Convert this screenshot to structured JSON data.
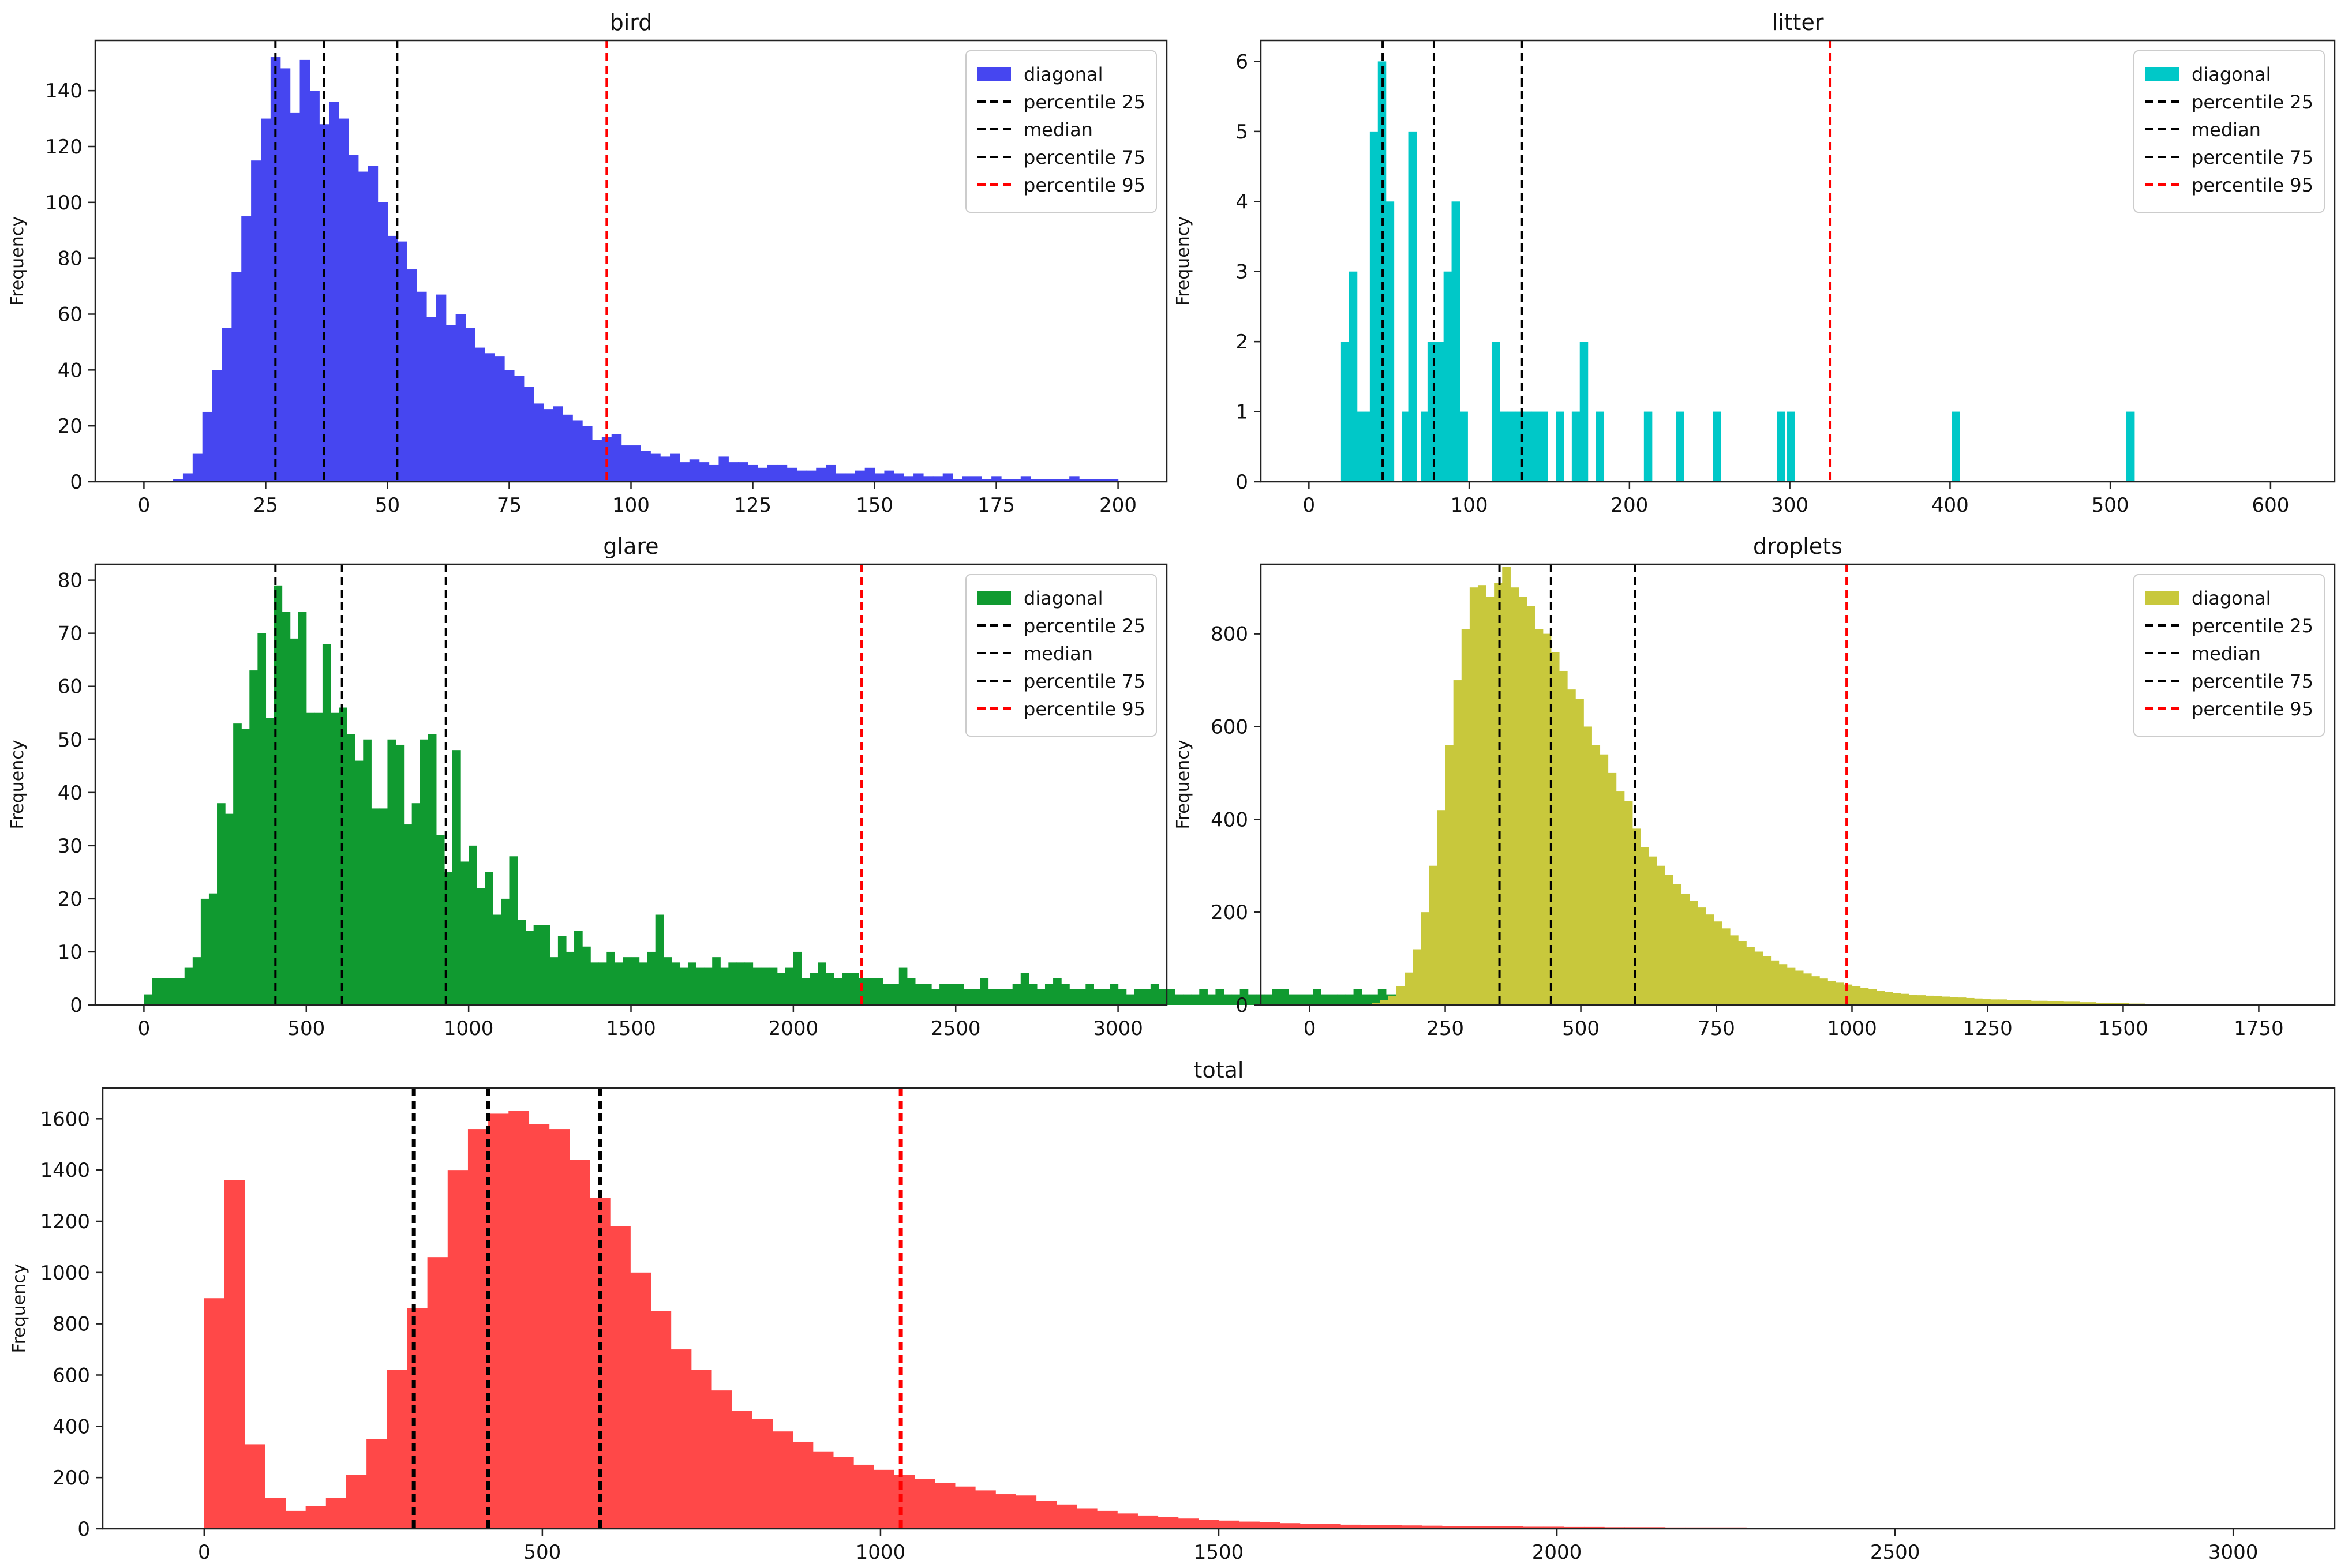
{
  "chart_data": [
    {
      "type": "bar",
      "id": "bird",
      "title": "bird",
      "xlabel": "",
      "ylabel": "Frequency",
      "color": "#4646f0",
      "xlim": [
        -10,
        210
      ],
      "ylim": [
        0,
        158
      ],
      "xticks": [
        0,
        25,
        50,
        75,
        100,
        125,
        150,
        175,
        200
      ],
      "yticks": [
        0,
        20,
        40,
        60,
        80,
        100,
        120,
        140
      ],
      "bin_start": 6,
      "bin_width": 2,
      "values": [
        1,
        3,
        10,
        25,
        40,
        55,
        75,
        95,
        115,
        130,
        152,
        148,
        132,
        151,
        140,
        128,
        136,
        130,
        117,
        111,
        113,
        100,
        88,
        86,
        76,
        68,
        59,
        67,
        56,
        60,
        55,
        48,
        46,
        45,
        40,
        38,
        34,
        28,
        26,
        27,
        24,
        22,
        20,
        15,
        16,
        17,
        13,
        13,
        11,
        10,
        9,
        10,
        7,
        8,
        7,
        6,
        9,
        7,
        7,
        6,
        5,
        6,
        6,
        5,
        4,
        4,
        5,
        6,
        3,
        3,
        4,
        5,
        3,
        4,
        3,
        2,
        3,
        2,
        2,
        3,
        1,
        2,
        2,
        1,
        2,
        1,
        1,
        2,
        1,
        1,
        1,
        1,
        2,
        1,
        1,
        1,
        1
      ],
      "legend": [
        {
          "label": "diagonal",
          "kind": "patch",
          "color": "#4646f0"
        },
        {
          "label": "percentile 25",
          "kind": "line",
          "color": "#000000"
        },
        {
          "label": "median",
          "kind": "line",
          "color": "#000000"
        },
        {
          "label": "percentile 75",
          "kind": "line",
          "color": "#000000"
        },
        {
          "label": "percentile 95",
          "kind": "line",
          "color": "#ff0000"
        }
      ],
      "vlines": [
        {
          "name": "percentile 25",
          "x": 27,
          "color": "#000000"
        },
        {
          "name": "median",
          "x": 37,
          "color": "#000000"
        },
        {
          "name": "percentile 75",
          "x": 52,
          "color": "#000000"
        },
        {
          "name": "percentile 95",
          "x": 95,
          "color": "#ff0000"
        }
      ],
      "legend_position": "top-right"
    },
    {
      "type": "bar",
      "id": "litter",
      "title": "litter",
      "xlabel": "",
      "ylabel": "Frequency",
      "color": "#00c8c8",
      "xlim": [
        -30,
        640
      ],
      "ylim": [
        0,
        6.3
      ],
      "xticks": [
        0,
        100,
        200,
        300,
        400,
        500,
        600
      ],
      "yticks": [
        0,
        1,
        2,
        3,
        4,
        5,
        6
      ],
      "bars": [
        {
          "x": 20,
          "w": 5,
          "h": 2
        },
        {
          "x": 25,
          "w": 5,
          "h": 3
        },
        {
          "x": 30,
          "w": 5,
          "h": 1
        },
        {
          "x": 35,
          "w": 5,
          "h": 1
        },
        {
          "x": 38,
          "w": 5,
          "h": 5
        },
        {
          "x": 43,
          "w": 5,
          "h": 6
        },
        {
          "x": 48,
          "w": 5,
          "h": 4
        },
        {
          "x": 58,
          "w": 5,
          "h": 1
        },
        {
          "x": 62,
          "w": 5,
          "h": 5
        },
        {
          "x": 70,
          "w": 5,
          "h": 1
        },
        {
          "x": 74,
          "w": 5,
          "h": 2
        },
        {
          "x": 79,
          "w": 5,
          "h": 2
        },
        {
          "x": 84,
          "w": 5,
          "h": 3
        },
        {
          "x": 89,
          "w": 5,
          "h": 4
        },
        {
          "x": 94,
          "w": 5,
          "h": 1
        },
        {
          "x": 114,
          "w": 5,
          "h": 2
        },
        {
          "x": 119,
          "w": 5,
          "h": 1
        },
        {
          "x": 124,
          "w": 5,
          "h": 1
        },
        {
          "x": 129,
          "w": 5,
          "h": 1
        },
        {
          "x": 134,
          "w": 5,
          "h": 1
        },
        {
          "x": 139,
          "w": 5,
          "h": 1
        },
        {
          "x": 144,
          "w": 5,
          "h": 1
        },
        {
          "x": 154,
          "w": 5,
          "h": 1
        },
        {
          "x": 164,
          "w": 5,
          "h": 1
        },
        {
          "x": 169,
          "w": 5,
          "h": 2
        },
        {
          "x": 179,
          "w": 5,
          "h": 1
        },
        {
          "x": 209,
          "w": 5,
          "h": 1
        },
        {
          "x": 229,
          "w": 5,
          "h": 1
        },
        {
          "x": 252,
          "w": 5,
          "h": 1
        },
        {
          "x": 292,
          "w": 5,
          "h": 1
        },
        {
          "x": 298,
          "w": 5,
          "h": 1
        },
        {
          "x": 401,
          "w": 5,
          "h": 1
        },
        {
          "x": 510,
          "w": 5,
          "h": 1
        }
      ],
      "legend": [
        {
          "label": "diagonal",
          "kind": "patch",
          "color": "#00c8c8"
        },
        {
          "label": "percentile 25",
          "kind": "line",
          "color": "#000000"
        },
        {
          "label": "median",
          "kind": "line",
          "color": "#000000"
        },
        {
          "label": "percentile 75",
          "kind": "line",
          "color": "#000000"
        },
        {
          "label": "percentile 95",
          "kind": "line",
          "color": "#ff0000"
        }
      ],
      "vlines": [
        {
          "name": "percentile 25",
          "x": 46,
          "color": "#000000"
        },
        {
          "name": "median",
          "x": 78,
          "color": "#000000"
        },
        {
          "name": "percentile 75",
          "x": 133,
          "color": "#000000"
        },
        {
          "name": "percentile 95",
          "x": 325,
          "color": "#ff0000"
        }
      ],
      "legend_position": "top-right"
    },
    {
      "type": "bar",
      "id": "glare",
      "title": "glare",
      "xlabel": "",
      "ylabel": "Frequency",
      "color": "#109a30",
      "xlim": [
        -150,
        3150
      ],
      "ylim": [
        0,
        83
      ],
      "xticks": [
        0,
        500,
        1000,
        1500,
        2000,
        2500,
        3000
      ],
      "yticks": [
        0,
        10,
        20,
        30,
        40,
        50,
        60,
        70,
        80
      ],
      "bin_start": 0,
      "bin_width": 25,
      "values": [
        2,
        5,
        5,
        5,
        5,
        7,
        9,
        20,
        21,
        38,
        36,
        53,
        52,
        63,
        70,
        54,
        79,
        74,
        69,
        74,
        55,
        55,
        68,
        55,
        56,
        51,
        46,
        50,
        37,
        37,
        50,
        49,
        34,
        38,
        50,
        51,
        32,
        25,
        48,
        27,
        30,
        22,
        25,
        17,
        20,
        28,
        16,
        14,
        15,
        15,
        9,
        13,
        10,
        14,
        11,
        8,
        8,
        10,
        8,
        9,
        9,
        8,
        10,
        17,
        9,
        8,
        7,
        8,
        7,
        7,
        9,
        7,
        8,
        8,
        8,
        7,
        7,
        7,
        6,
        7,
        10,
        5,
        6,
        8,
        6,
        5,
        6,
        6,
        5,
        5,
        5,
        4,
        4,
        7,
        5,
        4,
        4,
        3,
        4,
        4,
        4,
        3,
        3,
        5,
        3,
        3,
        3,
        4,
        6,
        4,
        3,
        4,
        5,
        4,
        3,
        3,
        4,
        3,
        3,
        4,
        3,
        2,
        3,
        3,
        4,
        3,
        3,
        2,
        2,
        2,
        3,
        2,
        3,
        2,
        2,
        3,
        2,
        2,
        2,
        3,
        3,
        2,
        2,
        2,
        3,
        2,
        2,
        2,
        2,
        3,
        2,
        2,
        3,
        2,
        2,
        2,
        2,
        3,
        2,
        2,
        3,
        2,
        2,
        2,
        2,
        3,
        2,
        2,
        2,
        2,
        3,
        2,
        2,
        2,
        2,
        3,
        2,
        2,
        2,
        2,
        3
      ],
      "legend": [
        {
          "label": "diagonal",
          "kind": "patch",
          "color": "#109a30"
        },
        {
          "label": "percentile 25",
          "kind": "line",
          "color": "#000000"
        },
        {
          "label": "median",
          "kind": "line",
          "color": "#000000"
        },
        {
          "label": "percentile 75",
          "kind": "line",
          "color": "#000000"
        },
        {
          "label": "percentile 95",
          "kind": "line",
          "color": "#ff0000"
        }
      ],
      "vlines": [
        {
          "name": "percentile 25",
          "x": 405,
          "color": "#000000"
        },
        {
          "name": "median",
          "x": 610,
          "color": "#000000"
        },
        {
          "name": "percentile 75",
          "x": 930,
          "color": "#000000"
        },
        {
          "name": "percentile 95",
          "x": 2210,
          "color": "#ff0000"
        }
      ],
      "legend_position": "top-right"
    },
    {
      "type": "bar",
      "id": "droplets",
      "title": "droplets",
      "xlabel": "",
      "ylabel": "Frequency",
      "color": "#c8c83c",
      "xlim": [
        -90,
        1890
      ],
      "ylim": [
        0,
        950
      ],
      "xticks": [
        0,
        250,
        500,
        750,
        1000,
        1250,
        1500,
        1750
      ],
      "yticks": [
        0,
        200,
        400,
        600,
        800
      ],
      "bin_start": 100,
      "bin_width": 15,
      "values": [
        2,
        5,
        10,
        20,
        40,
        70,
        120,
        200,
        300,
        420,
        560,
        700,
        810,
        900,
        905,
        880,
        910,
        945,
        900,
        880,
        860,
        810,
        800,
        760,
        720,
        680,
        660,
        600,
        560,
        540,
        500,
        460,
        440,
        380,
        340,
        320,
        300,
        280,
        260,
        240,
        225,
        210,
        195,
        180,
        165,
        150,
        138,
        125,
        115,
        105,
        96,
        88,
        80,
        74,
        68,
        62,
        57,
        52,
        48,
        44,
        40,
        37,
        34,
        31,
        28,
        26,
        24,
        22,
        21,
        20,
        19,
        18,
        17,
        16,
        15,
        14,
        13,
        12,
        12,
        11,
        11,
        10,
        9,
        9,
        8,
        8,
        7,
        7,
        6,
        6,
        5,
        5,
        4,
        4,
        3,
        3,
        2,
        2,
        2
      ],
      "legend": [
        {
          "label": "diagonal",
          "kind": "patch",
          "color": "#c8c83c"
        },
        {
          "label": "percentile 25",
          "kind": "line",
          "color": "#000000"
        },
        {
          "label": "median",
          "kind": "line",
          "color": "#000000"
        },
        {
          "label": "percentile 75",
          "kind": "line",
          "color": "#000000"
        },
        {
          "label": "percentile 95",
          "kind": "line",
          "color": "#ff0000"
        }
      ],
      "vlines": [
        {
          "name": "percentile 25",
          "x": 350,
          "color": "#000000"
        },
        {
          "name": "median",
          "x": 445,
          "color": "#000000"
        },
        {
          "name": "percentile 75",
          "x": 600,
          "color": "#000000"
        },
        {
          "name": "percentile 95",
          "x": 990,
          "color": "#ff0000"
        }
      ],
      "legend_position": "top-right"
    },
    {
      "type": "bar",
      "id": "total",
      "title": "total",
      "xlabel": "",
      "ylabel": "Frequency",
      "color": "#ff4848",
      "xlim": [
        -150,
        3150
      ],
      "ylim": [
        0,
        1720
      ],
      "xticks": [
        0,
        500,
        1000,
        1500,
        2000,
        2500,
        3000
      ],
      "yticks": [
        0,
        200,
        400,
        600,
        800,
        1000,
        1200,
        1400,
        1600
      ],
      "bin_start": 0,
      "bin_width": 30,
      "values": [
        900,
        1360,
        330,
        120,
        70,
        90,
        120,
        210,
        350,
        620,
        860,
        1060,
        1400,
        1560,
        1620,
        1630,
        1580,
        1560,
        1440,
        1290,
        1180,
        1000,
        850,
        700,
        620,
        540,
        460,
        430,
        380,
        340,
        300,
        280,
        250,
        230,
        210,
        195,
        180,
        165,
        150,
        135,
        130,
        110,
        95,
        80,
        70,
        60,
        52,
        45,
        40,
        36,
        32,
        28,
        25,
        22,
        20,
        18,
        16,
        15,
        14,
        13,
        12,
        11,
        10,
        9,
        9,
        8,
        8,
        7,
        7,
        6,
        6,
        6,
        5,
        5,
        5,
        5,
        4,
        4,
        4,
        4,
        4,
        3,
        3,
        3,
        3,
        3,
        3,
        3,
        2,
        2,
        2,
        2,
        2,
        2,
        2,
        2,
        2,
        2,
        2,
        2,
        2,
        2
      ],
      "legend": [],
      "vlines": [
        {
          "name": "percentile 25",
          "x": 310,
          "color": "#000000"
        },
        {
          "name": "median",
          "x": 420,
          "color": "#000000"
        },
        {
          "name": "percentile 75",
          "x": 585,
          "color": "#000000"
        },
        {
          "name": "percentile 95",
          "x": 1030,
          "color": "#ff0000"
        }
      ],
      "legend_position": "none"
    }
  ]
}
